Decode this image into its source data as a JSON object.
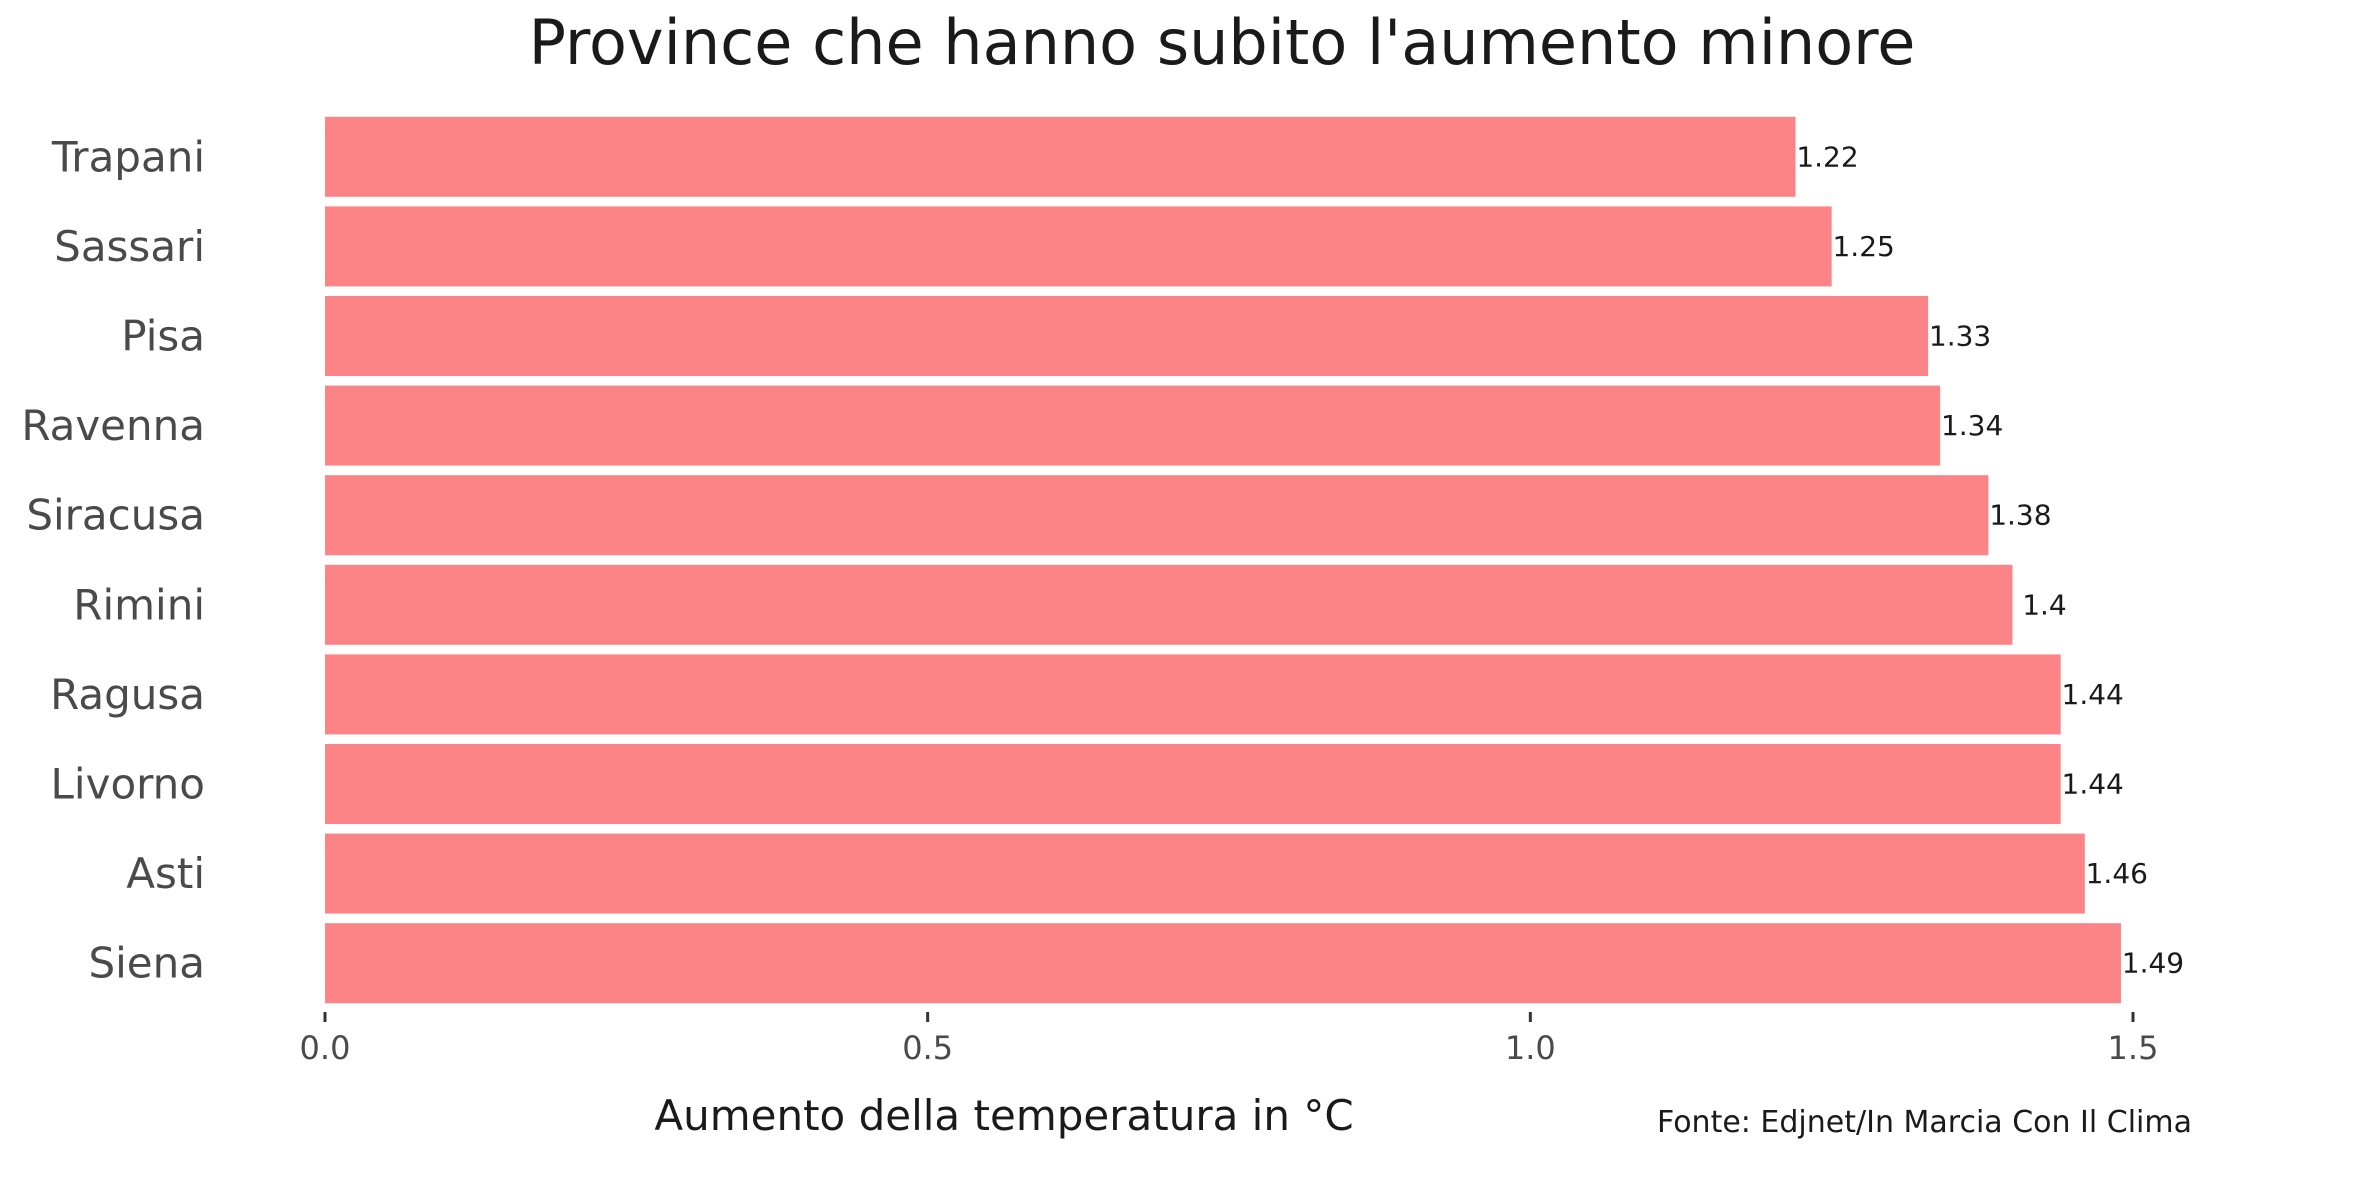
{
  "chart_data": {
    "type": "bar",
    "orientation": "horizontal",
    "title": "Province che hanno subito l'aumento minore",
    "xlabel": "Aumento della temperatura in °C",
    "ylabel": "",
    "caption": "Fonte: Edjnet/In Marcia Con Il Clima",
    "categories": [
      "Trapani",
      "Sassari",
      "Pisa",
      "Ravenna",
      "Siracusa",
      "Rimini",
      "Ragusa",
      "Livorno",
      "Asti",
      "Siena"
    ],
    "values": [
      1.22,
      1.25,
      1.33,
      1.34,
      1.38,
      1.4,
      1.44,
      1.44,
      1.46,
      1.49
    ],
    "value_labels": [
      "1.22",
      "1.25",
      "1.33",
      "1.34",
      "1.38",
      "1.4",
      "1.44",
      "1.44",
      "1.46",
      "1.49"
    ],
    "xlim": [
      0,
      1.5
    ],
    "xticks": [
      0,
      0.5,
      1.0,
      1.5
    ],
    "xtick_labels": [
      "0.0",
      "0.5",
      "1.0",
      "1.5"
    ],
    "bar_color": "#fc8487",
    "grid": false,
    "legend": "none"
  }
}
